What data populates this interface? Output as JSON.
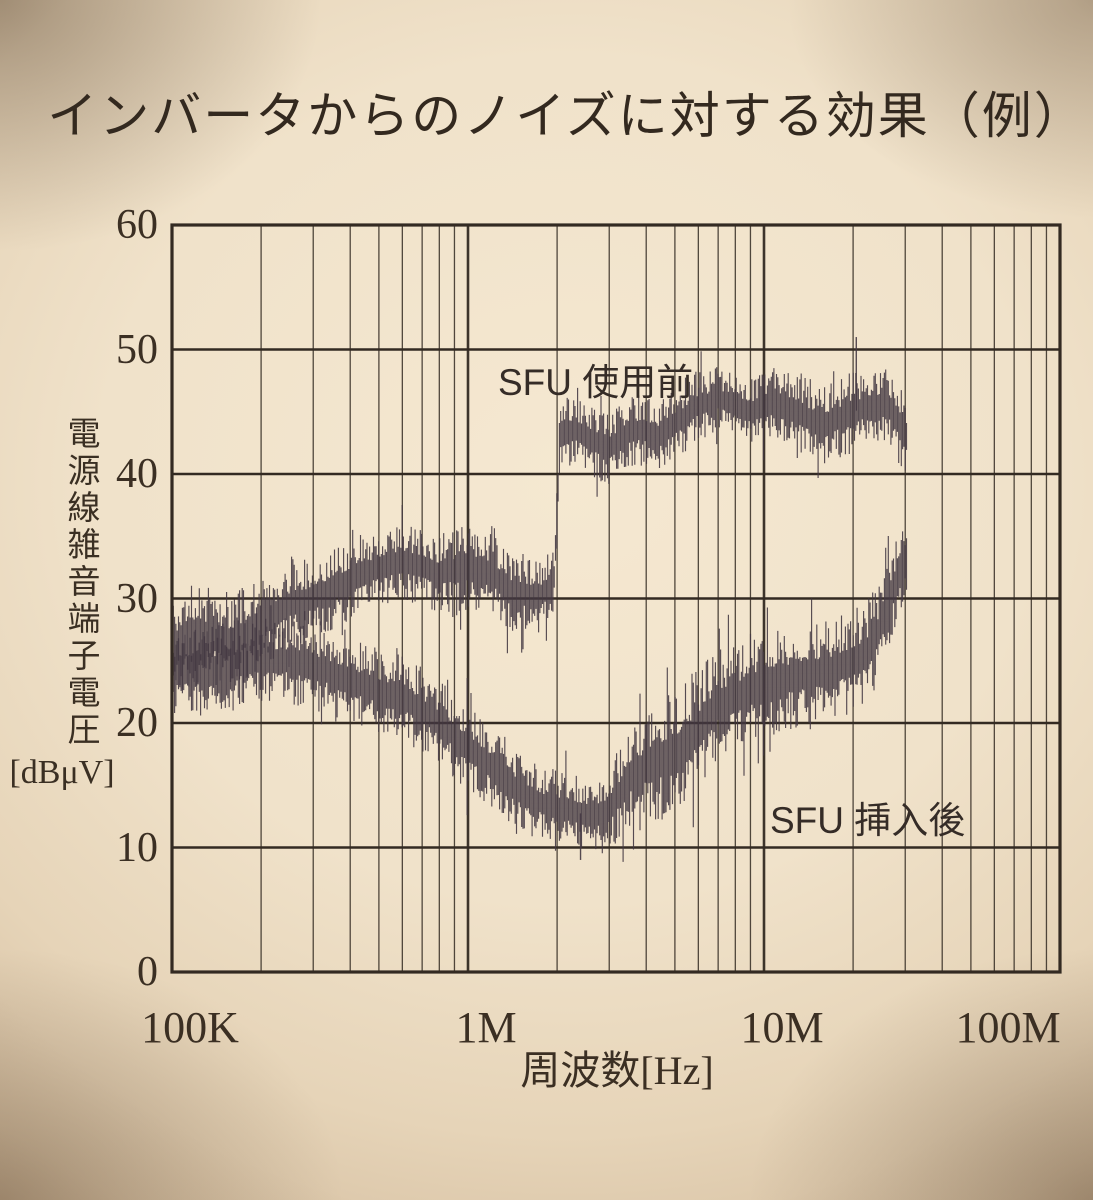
{
  "photo": {
    "paper_color": "#f0e2ca",
    "grid_color": "#332a22",
    "trace_color": "#443842",
    "text_color": "#3a2f23"
  },
  "title": "インバータからのノイズに対する効果（例）",
  "y_axis": {
    "label_vertical": "電源線雑音端子電圧",
    "unit": "[dBμV]",
    "ticks": [
      60,
      50,
      40,
      30,
      20,
      10,
      0
    ]
  },
  "x_axis": {
    "label": "周波数[Hz]",
    "tick_labels": [
      "100K",
      "1M",
      "10M",
      "100M"
    ],
    "tick_freqs_hz": [
      100000,
      1000000,
      10000000,
      100000000
    ]
  },
  "annotations": {
    "before_label": "SFU 使用前",
    "after_label": "SFU 挿入後"
  },
  "chart_data": {
    "type": "line",
    "title": "インバータからのノイズに対する効果（例）",
    "xlabel": "周波数[Hz]",
    "ylabel": "電源線雑音端子電圧 [dBμV]",
    "x_scale": "log",
    "x_range_hz": [
      100000,
      100000000
    ],
    "ylim": [
      0,
      60
    ],
    "grid": true,
    "series_note": "points are [frequency_hz, center_dBuV, noise_half_band_dB]; traces are dense noise bands ending near 30 MHz",
    "series": [
      {
        "name": "SFU 使用前",
        "seed": 11,
        "points": [
          [
            100000,
            26,
            3.5
          ],
          [
            130000,
            27,
            3.5
          ],
          [
            160000,
            26.5,
            3.5
          ],
          [
            200000,
            28,
            3.2
          ],
          [
            250000,
            29.5,
            3.0
          ],
          [
            300000,
            30,
            3.0
          ],
          [
            400000,
            31.5,
            3.0
          ],
          [
            500000,
            32.5,
            2.8
          ],
          [
            600000,
            33,
            2.6
          ],
          [
            700000,
            32.5,
            2.6
          ],
          [
            800000,
            32,
            2.8
          ],
          [
            1000000,
            32.5,
            3.0
          ],
          [
            1200000,
            32,
            3.0
          ],
          [
            1400000,
            30.5,
            2.8
          ],
          [
            1700000,
            30,
            2.6
          ],
          [
            1950000,
            31,
            2.5
          ],
          [
            2050000,
            43.5,
            2.5
          ],
          [
            2300000,
            43.5,
            2.5
          ],
          [
            2700000,
            42.5,
            2.5
          ],
          [
            3000000,
            42,
            2.5
          ],
          [
            3500000,
            43.5,
            2.5
          ],
          [
            4000000,
            43.5,
            2.5
          ],
          [
            4500000,
            43,
            2.5
          ],
          [
            5000000,
            44,
            2.5
          ],
          [
            6000000,
            45.5,
            2.5
          ],
          [
            7000000,
            46,
            2.3
          ],
          [
            8000000,
            45.5,
            2.3
          ],
          [
            9000000,
            45,
            2.5
          ],
          [
            10000000,
            45.5,
            2.5
          ],
          [
            12000000,
            45.5,
            2.5
          ],
          [
            14000000,
            44.5,
            2.8
          ],
          [
            16000000,
            44,
            2.8
          ],
          [
            18000000,
            44.5,
            2.8
          ],
          [
            20000000,
            45,
            2.8
          ],
          [
            23000000,
            45.5,
            2.6
          ],
          [
            26000000,
            45.5,
            2.6
          ],
          [
            28000000,
            44.5,
            2.8
          ],
          [
            30300000,
            43,
            3.0
          ]
        ],
        "spikes": [
          [
            20500000,
            51
          ]
        ]
      },
      {
        "name": "SFU 挿入後",
        "seed": 29,
        "points": [
          [
            100000,
            24,
            3.2
          ],
          [
            150000,
            24.5,
            3.2
          ],
          [
            200000,
            25,
            3.0
          ],
          [
            250000,
            25,
            3.0
          ],
          [
            300000,
            24.5,
            3.0
          ],
          [
            400000,
            23.5,
            3.0
          ],
          [
            500000,
            22.5,
            3.0
          ],
          [
            600000,
            22,
            3.0
          ],
          [
            700000,
            21,
            3.0
          ],
          [
            800000,
            20,
            3.0
          ],
          [
            900000,
            19,
            3.0
          ],
          [
            1000000,
            18,
            3.0
          ],
          [
            1200000,
            16.5,
            3.0
          ],
          [
            1500000,
            14.5,
            2.8
          ],
          [
            1800000,
            13.5,
            2.6
          ],
          [
            2200000,
            13,
            2.6
          ],
          [
            2600000,
            12.5,
            2.6
          ],
          [
            3000000,
            13,
            3.0
          ],
          [
            3500000,
            15.5,
            3.5
          ],
          [
            4000000,
            16.5,
            3.8
          ],
          [
            5000000,
            17.5,
            4.5
          ],
          [
            6000000,
            19.5,
            4.5
          ],
          [
            7000000,
            21.5,
            4.0
          ],
          [
            8000000,
            22,
            3.8
          ],
          [
            9000000,
            22.5,
            3.6
          ],
          [
            10000000,
            23,
            3.6
          ],
          [
            12000000,
            23.5,
            3.6
          ],
          [
            14000000,
            24,
            3.6
          ],
          [
            16000000,
            24,
            3.6
          ],
          [
            18000000,
            24.5,
            3.6
          ],
          [
            20000000,
            25,
            3.6
          ],
          [
            22000000,
            25.5,
            3.6
          ],
          [
            24000000,
            27,
            3.5
          ],
          [
            26000000,
            29,
            3.3
          ],
          [
            28000000,
            31.5,
            3.0
          ],
          [
            30300000,
            33.5,
            2.8
          ]
        ],
        "spikes": [
          [
            2400000,
            9
          ]
        ]
      }
    ]
  }
}
